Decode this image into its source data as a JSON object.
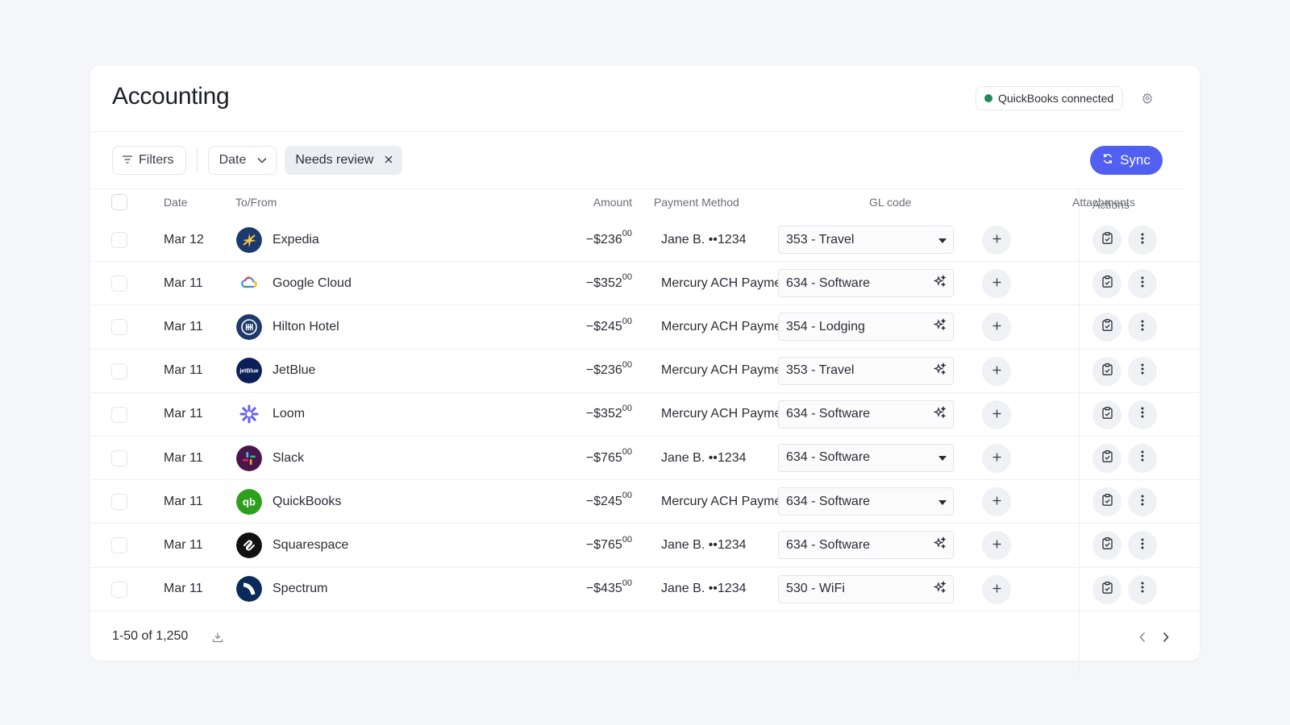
{
  "header": {
    "title": "Accounting",
    "integration_badge": "QuickBooks connected",
    "integration_status_color": "#1f8a5b"
  },
  "toolbar": {
    "filters_label": "Filters",
    "date_label": "Date",
    "active_filter_chip": "Needs review",
    "sync_label": "Sync",
    "sync_color": "#5160f0"
  },
  "table": {
    "columns": {
      "date": "Date",
      "to_from": "To/From",
      "amount": "Amount",
      "payment_method": "Payment Method",
      "gl_code": "GL code",
      "attachments": "Attachments",
      "actions": "Actions"
    },
    "rows": [
      {
        "date": "Mar 12",
        "vendor": "Expedia",
        "logo_icon": "expedia-logo-icon",
        "amount": "−$236",
        "cents": "00",
        "payment": "Jane B. ••1234",
        "gl": "353 - Travel",
        "gl_control": "dropdown"
      },
      {
        "date": "Mar 11",
        "vendor": "Google Cloud",
        "logo_icon": "google-cloud-logo-icon",
        "amount": "−$352",
        "cents": "00",
        "payment": "Mercury ACH Payment",
        "gl": "634 - Software",
        "gl_control": "ai-suggested"
      },
      {
        "date": "Mar 11",
        "vendor": "Hilton Hotel",
        "logo_icon": "hilton-logo-icon",
        "amount": "−$245",
        "cents": "00",
        "payment": "Mercury ACH Payment",
        "gl": "354 - Lodging",
        "gl_control": "ai-suggested"
      },
      {
        "date": "Mar 11",
        "vendor": "JetBlue",
        "logo_icon": "jetblue-logo-icon",
        "logo_text": "jetBlue",
        "amount": "−$236",
        "cents": "00",
        "payment": "Mercury ACH Payment",
        "gl": "353 - Travel",
        "gl_control": "ai-suggested"
      },
      {
        "date": "Mar 11",
        "vendor": "Loom",
        "logo_icon": "loom-logo-icon",
        "amount": "−$352",
        "cents": "00",
        "payment": "Mercury ACH Payment",
        "gl": "634 - Software",
        "gl_control": "ai-suggested"
      },
      {
        "date": "Mar 11",
        "vendor": "Slack",
        "logo_icon": "slack-logo-icon",
        "amount": "−$765",
        "cents": "00",
        "payment": "Jane B. ••1234",
        "gl": "634 - Software",
        "gl_control": "dropdown"
      },
      {
        "date": "Mar 11",
        "vendor": "QuickBooks",
        "logo_icon": "quickbooks-logo-icon",
        "amount": "−$245",
        "cents": "00",
        "payment": "Mercury ACH Payment",
        "gl": "634 - Software",
        "gl_control": "dropdown"
      },
      {
        "date": "Mar 11",
        "vendor": "Squarespace",
        "logo_icon": "squarespace-logo-icon",
        "amount": "−$765",
        "cents": "00",
        "payment": "Jane B. ••1234",
        "gl": "634 - Software",
        "gl_control": "ai-suggested"
      },
      {
        "date": "Mar 11",
        "vendor": "Spectrum",
        "logo_icon": "spectrum-logo-icon",
        "amount": "−$435",
        "cents": "00",
        "payment": "Jane B. ••1234",
        "gl": "530 - WiFi",
        "gl_control": "ai-suggested"
      }
    ]
  },
  "footer": {
    "pagination_text": "1-50 of 1,250"
  }
}
